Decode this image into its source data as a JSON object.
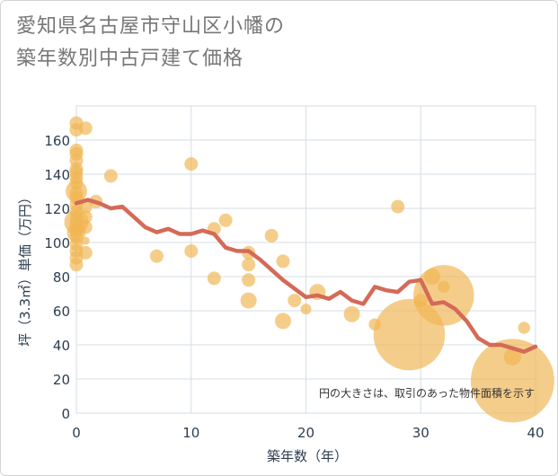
{
  "title_line1": "愛知県名古屋市守山区小幡の",
  "title_line2": "築年数別中古戸建て価格",
  "chart_data": {
    "type": "scatter",
    "xlabel": "築年数（年）",
    "ylabel": "坪（3.3㎡）単価（万円）",
    "xlim": [
      0,
      40
    ],
    "ylim": [
      0,
      180
    ],
    "x_ticks": [
      0,
      10,
      20,
      30,
      40
    ],
    "y_ticks": [
      0,
      20,
      40,
      60,
      80,
      100,
      120,
      140,
      160
    ],
    "grid": true,
    "note": "円の大きさは、取引のあった物件面積を示す",
    "colors": {
      "bubble": "#f0b552",
      "line": "#d46a57",
      "grid": "#d6dde6"
    },
    "bubbles": [
      {
        "x": 0,
        "y": 170,
        "s": 1
      },
      {
        "x": 0,
        "y": 166,
        "s": 1
      },
      {
        "x": 0,
        "y": 154,
        "s": 1
      },
      {
        "x": 0,
        "y": 152,
        "s": 1
      },
      {
        "x": 0,
        "y": 148,
        "s": 1
      },
      {
        "x": 0,
        "y": 143,
        "s": 1
      },
      {
        "x": 0,
        "y": 141,
        "s": 1
      },
      {
        "x": 0,
        "y": 138,
        "s": 1
      },
      {
        "x": 0,
        "y": 135,
        "s": 1
      },
      {
        "x": 0,
        "y": 129,
        "s": 1
      },
      {
        "x": 0,
        "y": 126,
        "s": 1
      },
      {
        "x": 0,
        "y": 122,
        "s": 1
      },
      {
        "x": 0,
        "y": 118,
        "s": 1
      },
      {
        "x": 0,
        "y": 114,
        "s": 1
      },
      {
        "x": 0,
        "y": 111,
        "s": 1
      },
      {
        "x": 0,
        "y": 107,
        "s": 1
      },
      {
        "x": 0,
        "y": 103,
        "s": 1
      },
      {
        "x": 0,
        "y": 99,
        "s": 1
      },
      {
        "x": 0,
        "y": 95,
        "s": 1
      },
      {
        "x": 0,
        "y": 91,
        "s": 1
      },
      {
        "x": 0,
        "y": 87,
        "s": 1
      },
      {
        "x": 0,
        "y": 130,
        "s": 1.6
      },
      {
        "x": 0,
        "y": 112,
        "s": 1.8
      },
      {
        "x": 0,
        "y": 106,
        "s": 1.4
      },
      {
        "x": 0.8,
        "y": 167,
        "s": 1
      },
      {
        "x": 0.8,
        "y": 121,
        "s": 1
      },
      {
        "x": 0.8,
        "y": 115,
        "s": 1
      },
      {
        "x": 0.8,
        "y": 109,
        "s": 1
      },
      {
        "x": 0.8,
        "y": 101,
        "s": 0.6
      },
      {
        "x": 0.8,
        "y": 94,
        "s": 1
      },
      {
        "x": 1.7,
        "y": 124,
        "s": 1
      },
      {
        "x": 3,
        "y": 139,
        "s": 1
      },
      {
        "x": 7,
        "y": 92,
        "s": 1
      },
      {
        "x": 10,
        "y": 146,
        "s": 1
      },
      {
        "x": 10,
        "y": 95,
        "s": 1
      },
      {
        "x": 12,
        "y": 108,
        "s": 1
      },
      {
        "x": 12,
        "y": 79,
        "s": 1
      },
      {
        "x": 13,
        "y": 113,
        "s": 1
      },
      {
        "x": 15,
        "y": 94,
        "s": 1
      },
      {
        "x": 15,
        "y": 87,
        "s": 1
      },
      {
        "x": 15,
        "y": 78,
        "s": 1
      },
      {
        "x": 15,
        "y": 66,
        "s": 1.2
      },
      {
        "x": 17,
        "y": 104,
        "s": 1
      },
      {
        "x": 18,
        "y": 89,
        "s": 1
      },
      {
        "x": 18,
        "y": 54,
        "s": 1.2
      },
      {
        "x": 19,
        "y": 66,
        "s": 1
      },
      {
        "x": 20,
        "y": 61,
        "s": 0.8
      },
      {
        "x": 21,
        "y": 71,
        "s": 1.2
      },
      {
        "x": 24,
        "y": 58,
        "s": 1.2
      },
      {
        "x": 26,
        "y": 52,
        "s": 0.9
      },
      {
        "x": 28,
        "y": 121,
        "s": 1
      },
      {
        "x": 29,
        "y": 46,
        "s": 5.3
      },
      {
        "x": 30,
        "y": 66,
        "s": 1
      },
      {
        "x": 31,
        "y": 80,
        "s": 1.2
      },
      {
        "x": 32,
        "y": 74,
        "s": 0.9
      },
      {
        "x": 32,
        "y": 69,
        "s": 4.5
      },
      {
        "x": 38,
        "y": 33,
        "s": 1.3
      },
      {
        "x": 38,
        "y": 19,
        "s": 6.2
      },
      {
        "x": 39,
        "y": 50,
        "s": 0.9
      }
    ],
    "trend": {
      "x": [
        0,
        1,
        2,
        3,
        4,
        5,
        6,
        7,
        8,
        9,
        10,
        11,
        12,
        13,
        14,
        15,
        16,
        17,
        18,
        19,
        20,
        21,
        22,
        23,
        24,
        25,
        26,
        27,
        28,
        29,
        30,
        31,
        32,
        33,
        34,
        35,
        36,
        37,
        38,
        39,
        40
      ],
      "y": [
        123,
        125,
        123,
        120,
        121,
        115,
        109,
        106,
        108,
        105,
        105,
        107,
        105,
        97,
        95,
        95,
        90,
        84,
        78,
        73,
        68,
        69,
        67,
        71,
        66,
        64,
        74,
        72,
        71,
        77,
        78,
        64,
        65,
        61,
        54,
        44,
        40,
        40,
        38,
        36,
        39
      ]
    }
  }
}
